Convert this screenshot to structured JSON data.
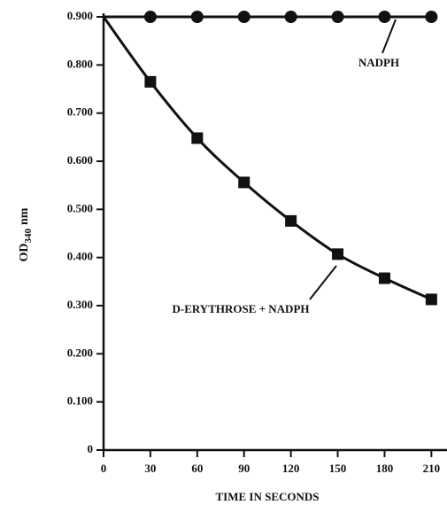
{
  "chart_data": {
    "type": "line",
    "x_label": "TIME IN SECONDS",
    "y_label": {
      "main": "OD",
      "sub": "340",
      "unit": "nm"
    },
    "x": [
      0,
      30,
      60,
      90,
      120,
      150,
      180,
      210
    ],
    "xlim": [
      0,
      220
    ],
    "xticks": [
      0,
      30,
      60,
      90,
      120,
      150,
      180,
      210
    ],
    "ylim": [
      0,
      0.9
    ],
    "yticks": [
      0,
      {
        "value": 0.1,
        "label": "0.100"
      },
      {
        "value": 0.2,
        "label": "0.200"
      },
      {
        "value": 0.3,
        "label": "0.300"
      },
      {
        "value": 0.4,
        "label": "0.400"
      },
      {
        "value": 0.5,
        "label": "0.500"
      },
      {
        "value": 0.6,
        "label": "0.600"
      },
      {
        "value": 0.7,
        "label": "0.700"
      },
      {
        "value": 0.8,
        "label": "0.800"
      },
      {
        "value": 0.9,
        "label": "0.900"
      }
    ],
    "series": [
      {
        "name": "NADPH",
        "color": "#111111",
        "marker": "circle",
        "values": [
          0.9,
          0.9,
          0.9,
          0.9,
          0.9,
          0.9,
          0.9,
          0.9
        ]
      },
      {
        "name": "D-ERYTHROSE + NADPH",
        "color": "#111111",
        "marker": "square",
        "values": [
          0.9,
          0.765,
          0.648,
          0.556,
          0.476,
          0.407,
          0.357,
          0.313
        ]
      }
    ]
  }
}
